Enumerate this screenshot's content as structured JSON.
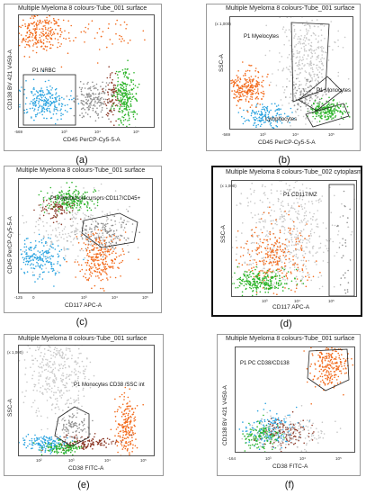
{
  "panels": [
    {
      "id": "a",
      "title": "Multiple Myeloma 8 colours-Tube_001 surface",
      "ylabel": "CD138 BV 421 V450-A",
      "xlabel": "CD45 PerCP-Cy5-5-A",
      "gates": [
        "P1 NRBC"
      ],
      "caption": "(a)",
      "ticks": [
        "-569",
        "10³",
        "10⁴",
        "10⁵"
      ]
    },
    {
      "id": "b",
      "title": "Multiple Myeloma 8 colours-Tube_001 surface",
      "ylabel": "SSC-A",
      "xlabel": "CD45 PerCP-Cy5-5-A",
      "gates": [
        "P1 Myelocytes",
        "P1 Monocytes",
        "Lymphocytes"
      ],
      "caption": "(b)",
      "ticks": [
        "(x 1,000)",
        "-569",
        "10³",
        "10⁴",
        "10⁵"
      ]
    },
    {
      "id": "c",
      "title": "Multiple Myeloma 8 colours-Tube_001 surface",
      "ylabel": "CD45 PerCP-Cy5-5-A",
      "xlabel": "CD117 APC-A",
      "gates": [
        "P1 Myeloid precursors CD117/CD45+"
      ],
      "caption": "(c)",
      "ticks": [
        "-125",
        "0",
        "10³",
        "10⁴",
        "10⁵"
      ]
    },
    {
      "id": "d",
      "title": "Multiple Myeloma 8 colours-Tube_002 cytoplasm",
      "ylabel": "SSC-A",
      "xlabel": "CD117 APC-A",
      "gates": [
        "P1 CD117/MZ"
      ],
      "caption": "(d)",
      "ticks": [
        "(x 1,000)",
        "10³",
        "10⁴",
        "10⁵"
      ]
    },
    {
      "id": "e",
      "title": "Multiple Myeloma 8 colours-Tube_001 surface",
      "ylabel": "SSC-A",
      "xlabel": "CD38 FITC-A",
      "gates": [
        "P1 Monocytes CD38 /SSC int"
      ],
      "caption": "(e)",
      "ticks": [
        "(x 1,000)",
        "10²",
        "10³",
        "10⁴",
        "10⁵"
      ]
    },
    {
      "id": "f",
      "title": "Multiple Myeloma 8 colours-Tube_001 surface",
      "ylabel": "CD138 BV 421 V450-A",
      "xlabel": "CD38 FITC-A",
      "gates": [
        "P1 PC CD38/CD138"
      ],
      "caption": "(f)",
      "ticks": [
        "-164",
        "10³",
        "10⁴",
        "10⁵"
      ]
    }
  ],
  "colors": {
    "orange": "#f26a1b",
    "green": "#2db42a",
    "blue": "#2aa3e0",
    "grey": "#8f8f8f",
    "lightgrey": "#c7c7c7",
    "darkred": "#8e3b2a"
  }
}
